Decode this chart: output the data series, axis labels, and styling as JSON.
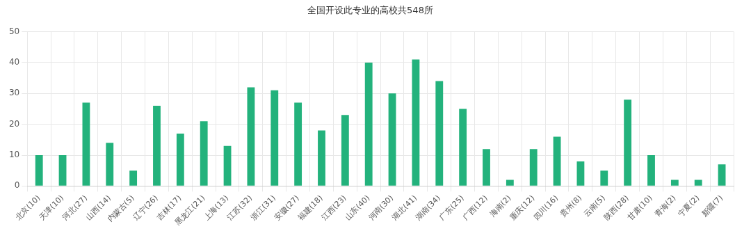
{
  "chart_data": {
    "type": "bar",
    "title": "全国开设此专业的高校共548所",
    "categories": [
      "北京(10)",
      "天津(10)",
      "河北(27)",
      "山西(14)",
      "内蒙古(5)",
      "辽宁(26)",
      "吉林(17)",
      "黑龙江(21)",
      "上海(13)",
      "江苏(32)",
      "浙江(31)",
      "安徽(27)",
      "福建(18)",
      "江西(23)",
      "山东(40)",
      "河南(30)",
      "湖北(41)",
      "湖南(34)",
      "广东(25)",
      "广西(12)",
      "海南(2)",
      "重庆(12)",
      "四川(16)",
      "贵州(8)",
      "云南(5)",
      "陕西(28)",
      "甘肃(10)",
      "青海(2)",
      "宁夏(2)",
      "新疆(7)"
    ],
    "values": [
      10,
      10,
      27,
      14,
      5,
      26,
      17,
      21,
      13,
      32,
      31,
      27,
      18,
      23,
      40,
      30,
      41,
      34,
      25,
      12,
      2,
      12,
      16,
      8,
      5,
      28,
      10,
      2,
      2,
      7
    ],
    "color": "#23b27c",
    "ylim": [
      0,
      50
    ],
    "yticks": [
      0,
      10,
      20,
      30,
      40,
      50
    ],
    "grid": true
  }
}
